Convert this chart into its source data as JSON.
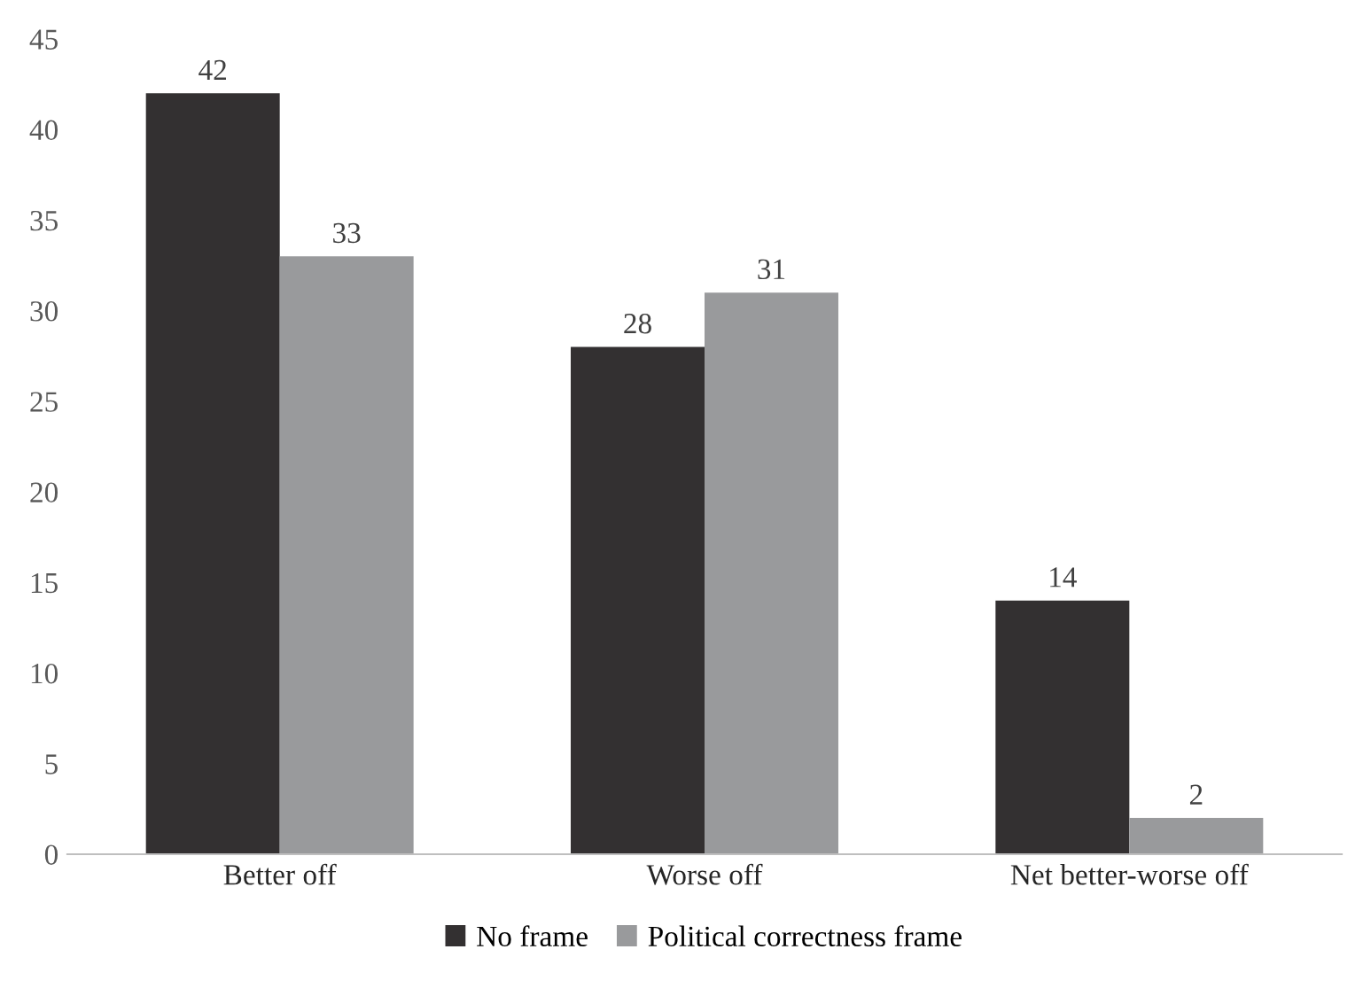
{
  "chart_data": {
    "type": "bar",
    "categories": [
      "Better off",
      "Worse off",
      "Net better-worse off"
    ],
    "series": [
      {
        "name": "No frame",
        "color": "#333031",
        "values": [
          42,
          28,
          14
        ]
      },
      {
        "name": "Political correctness frame",
        "color": "#999a9c",
        "values": [
          33,
          31,
          2
        ]
      }
    ],
    "ylim": [
      0,
      45
    ],
    "yticks": [
      0,
      5,
      10,
      15,
      20,
      25,
      30,
      35,
      40,
      45
    ],
    "grid": false,
    "legend": "bottom",
    "data_labels": true
  }
}
